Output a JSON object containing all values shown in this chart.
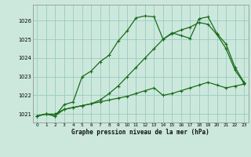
{
  "title": "Graphe pression niveau de la mer (hPa)",
  "bg_color": "#cce8dd",
  "grid_color": "#99ccbb",
  "line_color": "#1a6b1a",
  "xlim": [
    -0.5,
    23.5
  ],
  "ylim": [
    1020.55,
    1026.85
  ],
  "yticks": [
    1021,
    1022,
    1023,
    1024,
    1025,
    1026
  ],
  "xticks": [
    0,
    1,
    2,
    3,
    4,
    5,
    6,
    7,
    8,
    9,
    10,
    11,
    12,
    13,
    14,
    15,
    16,
    17,
    18,
    19,
    20,
    21,
    22,
    23
  ],
  "series1_x": [
    0,
    1,
    2,
    3,
    4,
    5,
    6,
    7,
    8,
    9,
    10,
    11,
    12,
    13,
    14,
    15,
    16,
    17,
    18,
    19,
    20,
    21,
    22,
    23
  ],
  "series1_y": [
    1020.9,
    1021.0,
    1020.9,
    1021.5,
    1021.65,
    1023.0,
    1023.3,
    1023.8,
    1024.15,
    1024.9,
    1025.45,
    1026.15,
    1026.25,
    1026.2,
    1025.0,
    1025.35,
    1025.2,
    1025.05,
    1026.1,
    1026.2,
    1025.3,
    1024.75,
    1023.5,
    1022.7
  ],
  "series2_x": [
    0,
    1,
    2,
    3,
    4,
    5,
    6,
    7,
    8,
    9,
    10,
    11,
    12,
    13,
    14,
    15,
    16,
    17,
    18,
    19,
    20,
    21,
    22,
    23
  ],
  "series2_y": [
    1020.9,
    1021.0,
    1021.0,
    1021.25,
    1021.35,
    1021.45,
    1021.55,
    1021.65,
    1021.75,
    1021.85,
    1021.95,
    1022.1,
    1022.25,
    1022.4,
    1022.0,
    1022.1,
    1022.25,
    1022.4,
    1022.55,
    1022.7,
    1022.55,
    1022.4,
    1022.5,
    1022.6
  ],
  "series3_x": [
    0,
    1,
    2,
    3,
    4,
    5,
    6,
    7,
    8,
    9,
    10,
    11,
    12,
    13,
    14,
    15,
    16,
    17,
    18,
    19,
    20,
    21,
    22,
    23
  ],
  "series3_y": [
    1020.9,
    1021.0,
    1020.9,
    1021.25,
    1021.35,
    1021.45,
    1021.55,
    1021.75,
    1022.1,
    1022.5,
    1023.0,
    1023.5,
    1024.0,
    1024.5,
    1025.0,
    1025.3,
    1025.5,
    1025.65,
    1025.9,
    1025.8,
    1025.25,
    1024.5,
    1023.35,
    1022.65
  ]
}
